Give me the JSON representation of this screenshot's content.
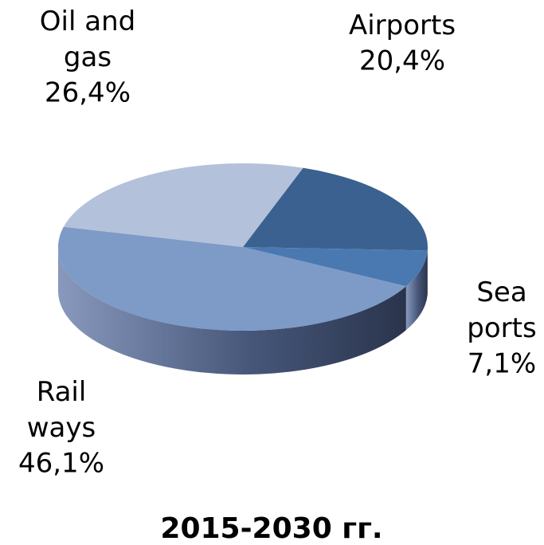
{
  "chart_data": {
    "type": "pie",
    "title": "2015-2030 гг.",
    "categories": [
      "Airports",
      "Sea ports",
      "Rail ways",
      "Oil and gas"
    ],
    "values": [
      20.4,
      7.1,
      46.1,
      26.4
    ],
    "value_labels": [
      "20,4%",
      "7,1%",
      "46,1%",
      "26,4%"
    ],
    "colors": [
      "#3b6190",
      "#4a79b2",
      "#7e9ac6",
      "#b3c1db"
    ],
    "three_d": true
  }
}
